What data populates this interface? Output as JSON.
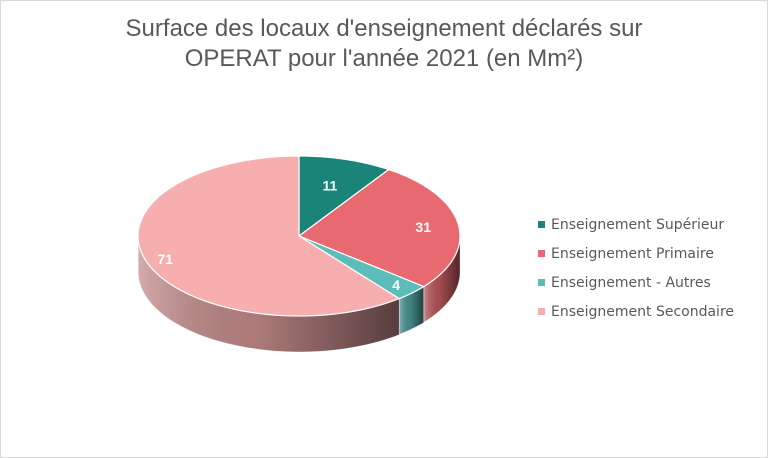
{
  "chart_data": {
    "type": "pie",
    "title": "Surface des locaux d'enseignement déclarés sur OPERAT pour l'année 2021 (en Mm²)",
    "title_lines": [
      "Surface des locaux d'enseignement déclarés sur",
      "OPERAT pour l'année 2021 (en Mm²)"
    ],
    "categories": [
      "Enseignement Supérieur",
      "Enseignement Primaire",
      "Enseignement - Autres",
      "Enseignement Secondaire"
    ],
    "values": [
      11,
      31,
      4,
      71
    ],
    "colors": [
      "#1a8478",
      "#e86a70",
      "#5cbcba",
      "#f7aeae"
    ],
    "data_labels": [
      "11",
      "31",
      "4",
      "71"
    ],
    "legend_position": "right",
    "style": "3d-pie"
  }
}
